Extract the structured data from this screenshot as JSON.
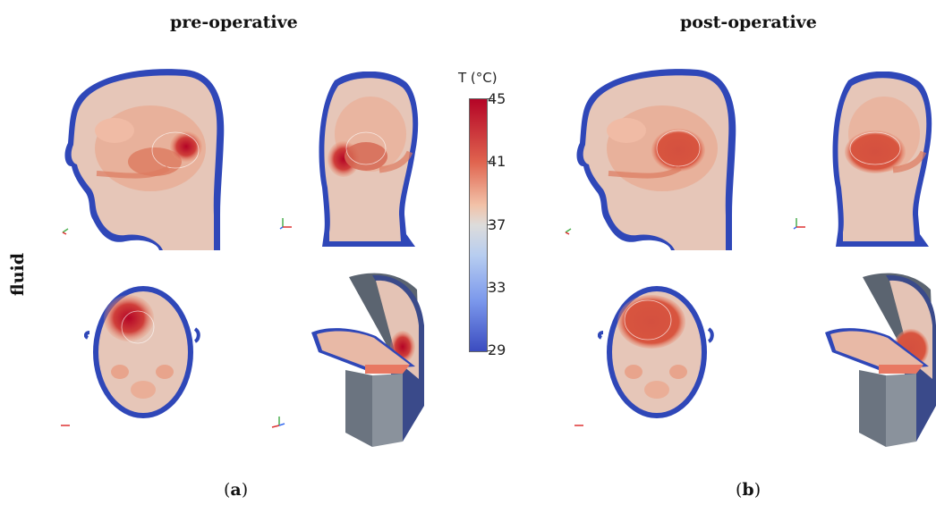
{
  "figure": {
    "pre_title": "pre-operative",
    "post_title": "post-operative",
    "row_label": "fluid",
    "caption_a": "a",
    "caption_b": "b"
  },
  "colorbar": {
    "title": "T (°C)",
    "ticks": [
      "45",
      "41",
      "37",
      "33",
      "29"
    ],
    "min": 29,
    "max": 45,
    "colors": [
      "#b40426",
      "#dd604b",
      "#f0b093",
      "#dddcdb",
      "#a8c4f0",
      "#6788ee",
      "#3b4cc0"
    ]
  }
}
